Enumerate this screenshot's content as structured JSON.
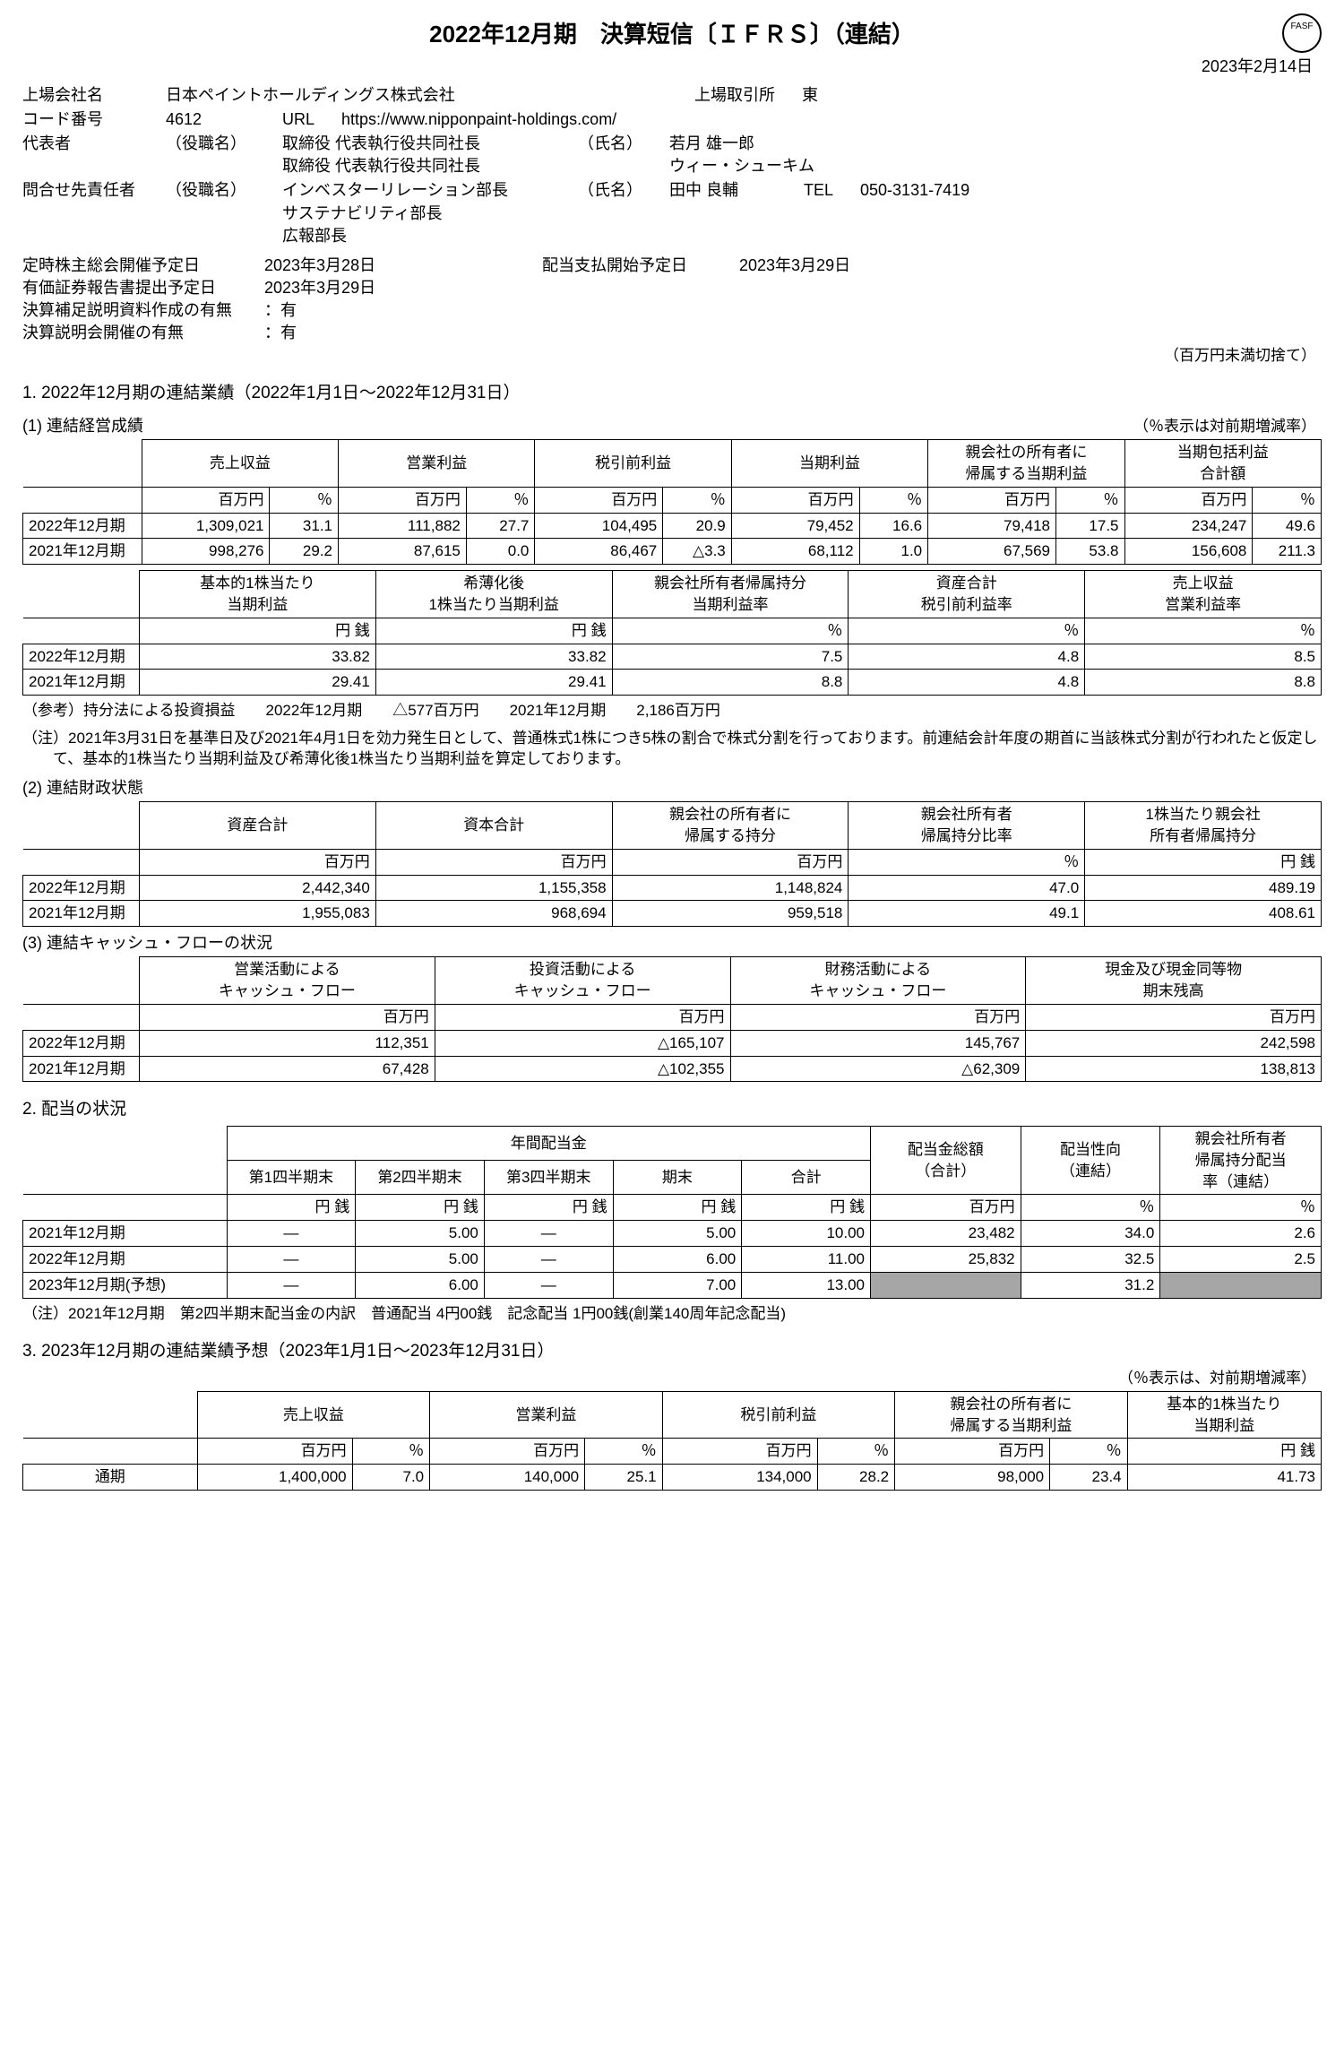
{
  "logo": "FASF",
  "title": "2022年12月期　決算短信〔ＩＦＲＳ〕（連結）",
  "report_date": "2023年2月14日",
  "hdr": {
    "company_lbl": "上場会社名",
    "company": "日本ペイントホールディングス株式会社",
    "exchange_lbl": "上場取引所",
    "exchange": "東",
    "code_lbl": "コード番号",
    "code": "4612",
    "url_lbl": "URL",
    "url": "https://www.nipponpaint-holdings.com/",
    "rep_lbl": "代表者",
    "rep_pos_lbl": "（役職名）",
    "rep_pos1": "取締役 代表執行役共同社長",
    "rep_pos2": "取締役 代表執行役共同社長",
    "rep_name_lbl": "（氏名）",
    "rep_name1": "若月 雄一郎",
    "rep_name2": "ウィー・シューキム",
    "contact_lbl": "問合せ先責任者",
    "contact_pos_lbl": "（役職名）",
    "contact_pos1": "インベスターリレーション部長",
    "contact_pos2": "サステナビリティ部長",
    "contact_pos3": "広報部長",
    "contact_name_lbl": "（氏名）",
    "contact_name": "田中 良輔",
    "tel_lbl": "TEL",
    "tel": "050-3131-7419",
    "agm_lbl": "定時株主総会開催予定日",
    "agm": "2023年3月28日",
    "div_start_lbl": "配当支払開始予定日",
    "div_start": "2023年3月29日",
    "filing_lbl": "有価証券報告書提出予定日",
    "filing": "2023年3月29日",
    "supp_lbl": "決算補足説明資料作成の有無",
    "supp": "：有",
    "brief_lbl": "決算説明会開催の有無",
    "brief": "：有",
    "unit_note": "（百万円未満切捨て）"
  },
  "s1": {
    "title": "1.  2022年12月期の連結業績（2022年1月1日～2022年12月31日）",
    "t1": {
      "title": "(1)  連結経営成績",
      "rnote": "（％表示は対前期増減率）",
      "head": [
        "売上収益",
        "営業利益",
        "税引前利益",
        "当期利益",
        "親会社の所有者に\n帰属する当期利益",
        "当期包括利益\n合計額"
      ],
      "unit_m": "百万円",
      "unit_p": "％",
      "rows": [
        {
          "lbl": "2022年12月期",
          "v": [
            "1,309,021",
            "31.1",
            "111,882",
            "27.7",
            "104,495",
            "20.9",
            "79,452",
            "16.6",
            "79,418",
            "17.5",
            "234,247",
            "49.6"
          ]
        },
        {
          "lbl": "2021年12月期",
          "v": [
            "998,276",
            "29.2",
            "87,615",
            "0.0",
            "86,467",
            "△3.3",
            "68,112",
            "1.0",
            "67,569",
            "53.8",
            "156,608",
            "211.3"
          ]
        }
      ]
    },
    "t1b": {
      "head": [
        "基本的1株当たり\n当期利益",
        "希薄化後\n1株当たり当期利益",
        "親会社所有者帰属持分\n当期利益率",
        "資産合計\n税引前利益率",
        "売上収益\n営業利益率"
      ],
      "unit_yen": "円 銭",
      "unit_p": "％",
      "rows": [
        {
          "lbl": "2022年12月期",
          "v": [
            "33.82",
            "33.82",
            "7.5",
            "4.8",
            "8.5"
          ]
        },
        {
          "lbl": "2021年12月期",
          "v": [
            "29.41",
            "29.41",
            "8.8",
            "4.8",
            "8.8"
          ]
        }
      ],
      "ref": "（参考）持分法による投資損益　　2022年12月期　　△577百万円　　2021年12月期　　2,186百万円",
      "note": "（注）2021年3月31日を基準日及び2021年4月1日を効力発生日として、普通株式1株につき5株の割合で株式分割を行っております。前連結会計年度の期首に当該株式分割が行われたと仮定して、基本的1株当たり当期利益及び希薄化後1株当たり当期利益を算定しております。"
    },
    "t2": {
      "title": "(2)  連結財政状態",
      "head": [
        "資産合計",
        "資本合計",
        "親会社の所有者に\n帰属する持分",
        "親会社所有者\n帰属持分比率",
        "1株当たり親会社\n所有者帰属持分"
      ],
      "unit_m": "百万円",
      "unit_p": "％",
      "unit_yen": "円 銭",
      "rows": [
        {
          "lbl": "2022年12月期",
          "v": [
            "2,442,340",
            "1,155,358",
            "1,148,824",
            "47.0",
            "489.19"
          ]
        },
        {
          "lbl": "2021年12月期",
          "v": [
            "1,955,083",
            "968,694",
            "959,518",
            "49.1",
            "408.61"
          ]
        }
      ]
    },
    "t3": {
      "title": "(3)  連結キャッシュ・フローの状況",
      "head": [
        "営業活動による\nキャッシュ・フロー",
        "投資活動による\nキャッシュ・フロー",
        "財務活動による\nキャッシュ・フロー",
        "現金及び現金同等物\n期末残高"
      ],
      "unit_m": "百万円",
      "rows": [
        {
          "lbl": "2022年12月期",
          "v": [
            "112,351",
            "△165,107",
            "145,767",
            "242,598"
          ]
        },
        {
          "lbl": "2021年12月期",
          "v": [
            "67,428",
            "△102,355",
            "△62,309",
            "138,813"
          ]
        }
      ]
    }
  },
  "s2": {
    "title": "2.  配当の状況",
    "group": "年間配当金",
    "head": [
      "第1四半期末",
      "第2四半期末",
      "第3四半期末",
      "期末",
      "合計"
    ],
    "right_head": [
      "配当金総額\n（合計）",
      "配当性向\n（連結）",
      "親会社所有者\n帰属持分配当\n率（連結）"
    ],
    "unit_yen": "円 銭",
    "unit_m": "百万円",
    "unit_p": "％",
    "rows": [
      {
        "lbl": "2021年12月期",
        "v": [
          "―",
          "5.00",
          "―",
          "5.00",
          "10.00",
          "23,482",
          "34.0",
          "2.6"
        ]
      },
      {
        "lbl": "2022年12月期",
        "v": [
          "―",
          "5.00",
          "―",
          "6.00",
          "11.00",
          "25,832",
          "32.5",
          "2.5"
        ]
      },
      {
        "lbl": "2023年12月期(予想)",
        "v": [
          "―",
          "6.00",
          "―",
          "7.00",
          "13.00",
          "",
          "31.2",
          ""
        ],
        "gray": [
          5,
          7
        ]
      }
    ],
    "note": "（注）2021年12月期　第2四半期末配当金の内訳　普通配当 4円00銭　記念配当 1円00銭(創業140周年記念配当)"
  },
  "s3": {
    "title": "3.  2023年12月期の連結業績予想（2023年1月1日～2023年12月31日）",
    "rnote": "（％表示は、対前期増減率）",
    "head": [
      "売上収益",
      "営業利益",
      "税引前利益",
      "親会社の所有者に\n帰属する当期利益",
      "基本的1株当たり\n当期利益"
    ],
    "unit_m": "百万円",
    "unit_p": "％",
    "unit_yen": "円 銭",
    "row": {
      "lbl": "通期",
      "v": [
        "1,400,000",
        "7.0",
        "140,000",
        "25.1",
        "134,000",
        "28.2",
        "98,000",
        "23.4",
        "41.73"
      ]
    }
  }
}
